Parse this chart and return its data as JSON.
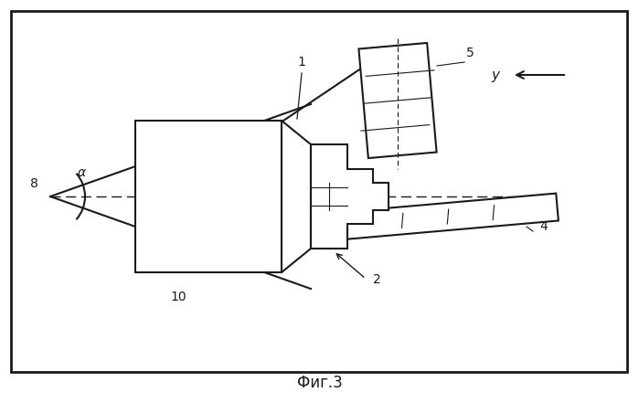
{
  "title": "Фиг.3",
  "bg": "#ffffff",
  "lc": "#1a1a1a",
  "fig_width": 6.99,
  "fig_height": 4.41,
  "dpi": 100
}
